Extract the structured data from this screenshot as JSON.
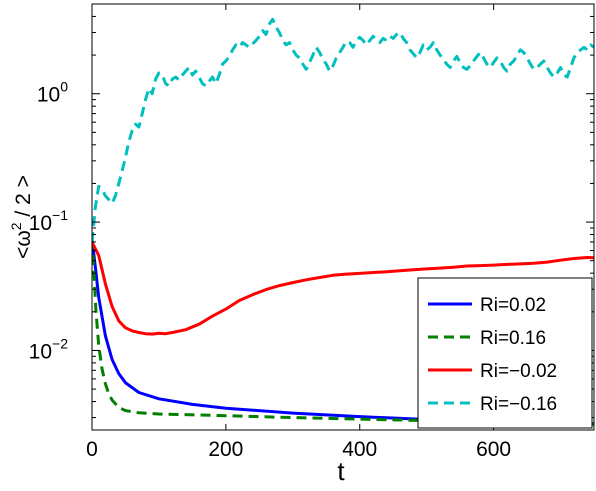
{
  "chart_data": {
    "type": "line",
    "xlabel": "t",
    "ylabel": "<ω² / 2 >",
    "ylabel_parts": {
      "open": "<ω",
      "sup": "2",
      "close": " / 2 >"
    },
    "xlim": [
      0,
      750
    ],
    "ylim": [
      0.0024,
      5.0
    ],
    "yscale": "log",
    "x_ticks": [
      0,
      200,
      400,
      600
    ],
    "x_tick_labels": [
      "0",
      "200",
      "400",
      "600"
    ],
    "y_ticks": [
      {
        "value": 0.01,
        "base": "10",
        "exp": "−2"
      },
      {
        "value": 0.1,
        "base": "10",
        "exp": "−1"
      },
      {
        "value": 1,
        "base": "10",
        "exp": "0"
      }
    ],
    "grid": false,
    "legend_position": "lower-right",
    "series": [
      {
        "name": "Ri=0.02",
        "color": "#0000ff",
        "dash": "solid",
        "points": [
          [
            0,
            0.074
          ],
          [
            5,
            0.045
          ],
          [
            10,
            0.026
          ],
          [
            20,
            0.013
          ],
          [
            30,
            0.0085
          ],
          [
            40,
            0.0066
          ],
          [
            50,
            0.0056
          ],
          [
            70,
            0.0047
          ],
          [
            100,
            0.0042
          ],
          [
            150,
            0.0038
          ],
          [
            200,
            0.00355
          ],
          [
            300,
            0.00325
          ],
          [
            400,
            0.00305
          ],
          [
            500,
            0.0029
          ],
          [
            600,
            0.0028
          ],
          [
            700,
            0.0027
          ],
          [
            750,
            0.00268
          ]
        ]
      },
      {
        "name": "Ri=0.16",
        "color": "#007f00",
        "dash": "dashed",
        "points": [
          [
            0,
            0.074
          ],
          [
            3,
            0.04
          ],
          [
            6,
            0.02
          ],
          [
            10,
            0.011
          ],
          [
            15,
            0.0072
          ],
          [
            20,
            0.0055
          ],
          [
            25,
            0.0046
          ],
          [
            30,
            0.0041
          ],
          [
            40,
            0.0036
          ],
          [
            50,
            0.0034
          ],
          [
            70,
            0.00327
          ],
          [
            100,
            0.0032
          ],
          [
            200,
            0.0031
          ],
          [
            300,
            0.003
          ],
          [
            400,
            0.00292
          ],
          [
            500,
            0.00284
          ],
          [
            600,
            0.00276
          ],
          [
            700,
            0.0027
          ],
          [
            750,
            0.00266
          ]
        ]
      },
      {
        "name": "Ri=−0.02",
        "color": "#ff0000",
        "dash": "solid",
        "points": [
          [
            0,
            0.07
          ],
          [
            10,
            0.055
          ],
          [
            20,
            0.033
          ],
          [
            30,
            0.022
          ],
          [
            40,
            0.017
          ],
          [
            50,
            0.015
          ],
          [
            60,
            0.0142
          ],
          [
            70,
            0.0138
          ],
          [
            80,
            0.0135
          ],
          [
            90,
            0.0134
          ],
          [
            100,
            0.0136
          ],
          [
            110,
            0.0135
          ],
          [
            120,
            0.0138
          ],
          [
            140,
            0.0145
          ],
          [
            160,
            0.016
          ],
          [
            180,
            0.0185
          ],
          [
            200,
            0.021
          ],
          [
            220,
            0.0245
          ],
          [
            240,
            0.0272
          ],
          [
            260,
            0.0298
          ],
          [
            280,
            0.032
          ],
          [
            300,
            0.0338
          ],
          [
            320,
            0.0355
          ],
          [
            340,
            0.037
          ],
          [
            360,
            0.0385
          ],
          [
            380,
            0.0393
          ],
          [
            400,
            0.0398
          ],
          [
            420,
            0.0405
          ],
          [
            440,
            0.041
          ],
          [
            460,
            0.0418
          ],
          [
            480,
            0.0425
          ],
          [
            500,
            0.0432
          ],
          [
            520,
            0.0438
          ],
          [
            540,
            0.0445
          ],
          [
            560,
            0.0455
          ],
          [
            580,
            0.0458
          ],
          [
            600,
            0.0462
          ],
          [
            620,
            0.0468
          ],
          [
            640,
            0.0472
          ],
          [
            660,
            0.0478
          ],
          [
            680,
            0.0488
          ],
          [
            700,
            0.0505
          ],
          [
            720,
            0.052
          ],
          [
            740,
            0.053
          ],
          [
            750,
            0.0528
          ]
        ]
      },
      {
        "name": "Ri=−0.16",
        "color": "#00bfbf",
        "dash": "dashed",
        "points": [
          [
            0,
            0.07
          ],
          [
            5,
            0.13
          ],
          [
            10,
            0.19
          ],
          [
            15,
            0.18
          ],
          [
            20,
            0.16
          ],
          [
            25,
            0.15
          ],
          [
            30,
            0.14
          ],
          [
            35,
            0.16
          ],
          [
            40,
            0.2
          ],
          [
            45,
            0.25
          ],
          [
            50,
            0.32
          ],
          [
            55,
            0.42
          ],
          [
            60,
            0.52
          ],
          [
            65,
            0.58
          ],
          [
            70,
            0.55
          ],
          [
            75,
            0.7
          ],
          [
            80,
            0.9
          ],
          [
            85,
            1.1
          ],
          [
            90,
            1.0
          ],
          [
            95,
            1.3
          ],
          [
            100,
            1.45
          ],
          [
            105,
            1.4
          ],
          [
            110,
            1.2
          ],
          [
            115,
            1.15
          ],
          [
            120,
            1.3
          ],
          [
            125,
            1.35
          ],
          [
            130,
            1.28
          ],
          [
            135,
            1.4
          ],
          [
            140,
            1.5
          ],
          [
            145,
            1.6
          ],
          [
            150,
            1.4
          ],
          [
            155,
            1.5
          ],
          [
            160,
            1.35
          ],
          [
            165,
            1.2
          ],
          [
            170,
            1.15
          ],
          [
            175,
            1.25
          ],
          [
            180,
            1.35
          ],
          [
            185,
            1.2
          ],
          [
            190,
            1.4
          ],
          [
            195,
            1.7
          ],
          [
            200,
            1.8
          ],
          [
            205,
            1.95
          ],
          [
            210,
            2.2
          ],
          [
            215,
            2.4
          ],
          [
            220,
            2.3
          ],
          [
            225,
            2.5
          ],
          [
            230,
            2.4
          ],
          [
            235,
            2.3
          ],
          [
            240,
            2.45
          ],
          [
            245,
            2.6
          ],
          [
            250,
            2.8
          ],
          [
            255,
            3.1
          ],
          [
            260,
            2.9
          ],
          [
            265,
            3.5
          ],
          [
            270,
            3.8
          ],
          [
            275,
            3.3
          ],
          [
            280,
            3.0
          ],
          [
            285,
            2.6
          ],
          [
            290,
            2.4
          ],
          [
            295,
            2.5
          ],
          [
            300,
            2.2
          ],
          [
            305,
            2.0
          ],
          [
            310,
            1.9
          ],
          [
            315,
            1.7
          ],
          [
            320,
            1.55
          ],
          [
            325,
            1.75
          ],
          [
            330,
            2.0
          ],
          [
            335,
            2.3
          ],
          [
            340,
            2.1
          ],
          [
            345,
            1.85
          ],
          [
            350,
            1.7
          ],
          [
            355,
            1.5
          ],
          [
            360,
            1.65
          ],
          [
            365,
            1.9
          ],
          [
            370,
            2.1
          ],
          [
            375,
            2.3
          ],
          [
            380,
            2.55
          ],
          [
            385,
            2.5
          ],
          [
            390,
            2.3
          ],
          [
            395,
            2.6
          ],
          [
            400,
            2.75
          ],
          [
            405,
            2.6
          ],
          [
            410,
            2.4
          ],
          [
            415,
            2.6
          ],
          [
            420,
            2.8
          ],
          [
            425,
            2.65
          ],
          [
            430,
            2.5
          ],
          [
            435,
            2.7
          ],
          [
            440,
            2.6
          ],
          [
            445,
            2.8
          ],
          [
            450,
            2.7
          ],
          [
            455,
            2.9
          ],
          [
            460,
            3.0
          ],
          [
            465,
            2.7
          ],
          [
            470,
            2.5
          ],
          [
            475,
            2.2
          ],
          [
            480,
            2.05
          ],
          [
            485,
            1.9
          ],
          [
            490,
            2.1
          ],
          [
            495,
            2.4
          ],
          [
            500,
            2.2
          ],
          [
            505,
            2.3
          ],
          [
            510,
            2.5
          ],
          [
            515,
            2.2
          ],
          [
            520,
            2.0
          ],
          [
            525,
            1.85
          ],
          [
            530,
            1.7
          ],
          [
            535,
            1.6
          ],
          [
            540,
            1.8
          ],
          [
            545,
            1.95
          ],
          [
            550,
            1.75
          ],
          [
            555,
            1.6
          ],
          [
            560,
            1.55
          ],
          [
            565,
            1.65
          ],
          [
            570,
            1.8
          ],
          [
            575,
            1.95
          ],
          [
            580,
            2.1
          ],
          [
            585,
            1.9
          ],
          [
            590,
            1.7
          ],
          [
            595,
            1.6
          ],
          [
            600,
            1.75
          ],
          [
            605,
            1.9
          ],
          [
            610,
            1.8
          ],
          [
            615,
            1.6
          ],
          [
            620,
            1.5
          ],
          [
            625,
            1.7
          ],
          [
            630,
            1.8
          ],
          [
            635,
            2.0
          ],
          [
            640,
            2.2
          ],
          [
            645,
            2.1
          ],
          [
            650,
            1.9
          ],
          [
            655,
            1.7
          ],
          [
            660,
            1.55
          ],
          [
            665,
            1.6
          ],
          [
            670,
            1.7
          ],
          [
            675,
            1.8
          ],
          [
            680,
            1.6
          ],
          [
            685,
            1.45
          ],
          [
            690,
            1.35
          ],
          [
            695,
            1.45
          ],
          [
            700,
            1.6
          ],
          [
            705,
            1.4
          ],
          [
            710,
            1.35
          ],
          [
            715,
            1.6
          ],
          [
            720,
            1.9
          ],
          [
            725,
            2.1
          ],
          [
            730,
            2.2
          ],
          [
            735,
            2.3
          ],
          [
            740,
            2.2
          ],
          [
            745,
            2.4
          ],
          [
            750,
            2.3
          ]
        ]
      }
    ]
  }
}
